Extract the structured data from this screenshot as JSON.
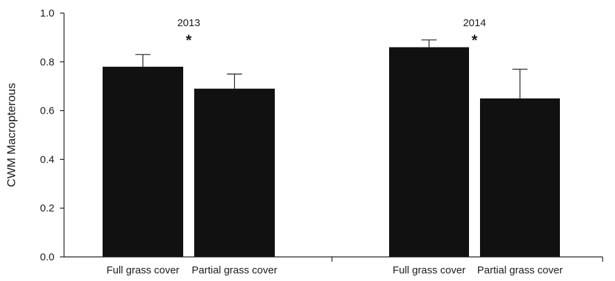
{
  "chart_data": {
    "type": "bar",
    "ylabel": "CWM Macropterous",
    "ylim": [
      0,
      1.0
    ],
    "yticks": [
      "0.0",
      "0.2",
      "0.4",
      "0.6",
      "0.8",
      "1.0"
    ],
    "ytick_values": [
      0,
      0.2,
      0.4,
      0.6,
      0.8,
      1.0
    ],
    "grid": false,
    "bar_color": "#111111",
    "groups": [
      {
        "label": "2013",
        "significance": "*",
        "bars": [
          {
            "category": "Full grass cover",
            "value": 0.78,
            "error": 0.05
          },
          {
            "category": "Partial grass cover",
            "value": 0.69,
            "error": 0.06
          }
        ]
      },
      {
        "label": "2014",
        "significance": "*",
        "bars": [
          {
            "category": "Full grass cover",
            "value": 0.86,
            "error": 0.03
          },
          {
            "category": "Partial grass cover",
            "value": 0.65,
            "error": 0.12
          }
        ]
      }
    ]
  }
}
